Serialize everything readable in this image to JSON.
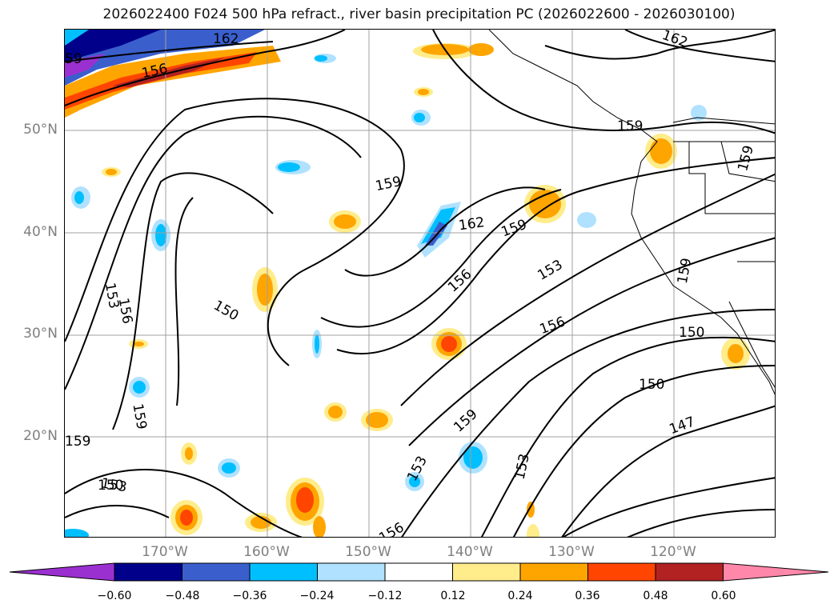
{
  "title": "2026022400 F024 500 hPa refract., river basin precipitation PC (2026022600 - 2026030100)",
  "lat_labels": [
    "50°N",
    "40°N",
    "30°N",
    "20°N"
  ],
  "lon_labels": [
    "170°W",
    "160°W",
    "150°W",
    "140°W",
    "130°W",
    "120°W"
  ],
  "colorbar": {
    "ticks": [
      "−0.60",
      "−0.48",
      "−0.36",
      "−0.24",
      "−0.12",
      "0.12",
      "0.24",
      "0.36",
      "0.48",
      "0.60"
    ],
    "colors": [
      "#9b30d0",
      "#00008b",
      "#3a5fcd",
      "#00bfff",
      "#b0e2ff",
      "#ffffff",
      "#ffec8b",
      "#ffa500",
      "#ff4500",
      "#b22222",
      "#ff88aa"
    ]
  },
  "contour_labels": [
    "162",
    "162",
    "156",
    "159",
    "159",
    "162",
    "159",
    "159",
    "156",
    "153",
    "153",
    "156",
    "150",
    "159",
    "150",
    "150",
    "159",
    "153",
    "153",
    "153",
    "156",
    "147",
    "150",
    "159",
    "156",
    "59",
    "159"
  ]
}
